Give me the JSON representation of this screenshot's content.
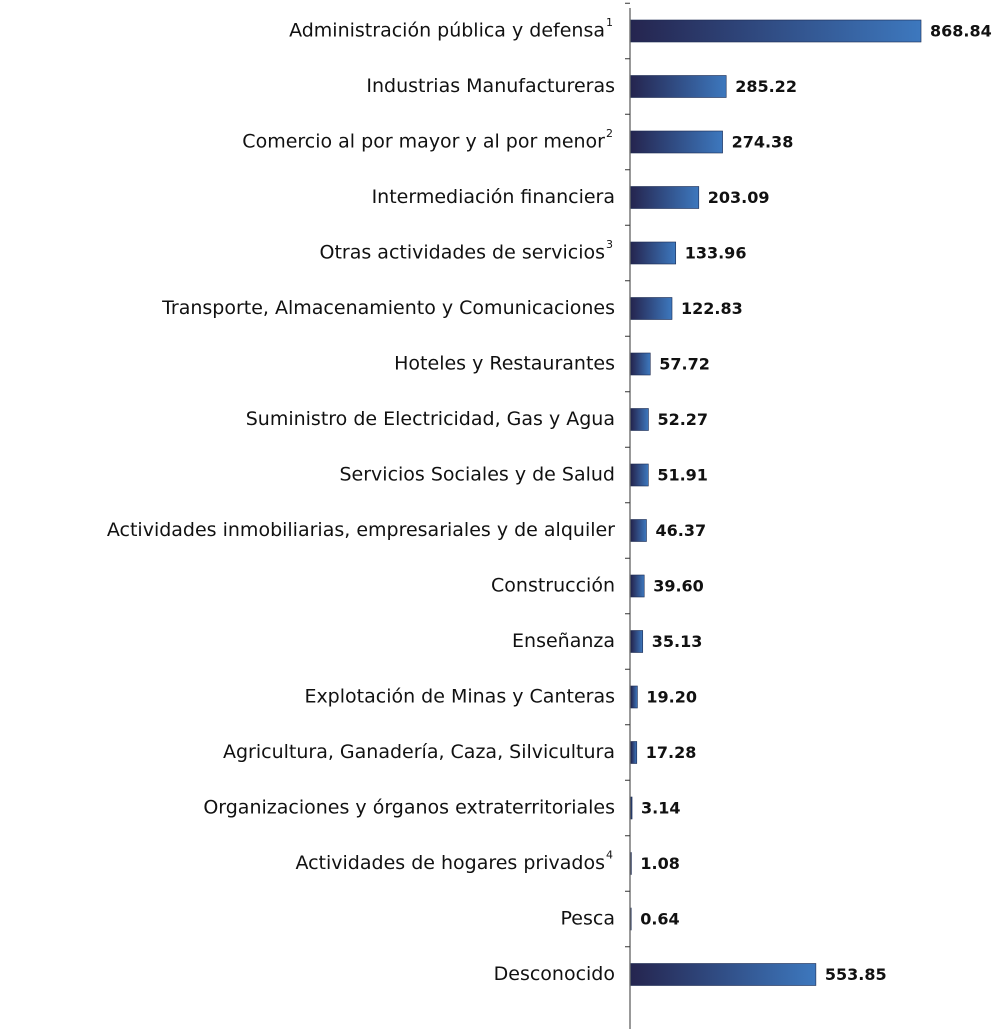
{
  "chart_data": {
    "type": "hbar",
    "categories": [
      "Administración pública y defensa",
      "Industrias Manufactureras",
      "Comercio al por mayor y al por menor",
      "Intermediación financiera",
      "Otras actividades de servicios",
      "Transporte, Almacenamiento y Comunicaciones",
      "Hoteles y Restaurantes",
      "Suministro de Electricidad, Gas y Agua",
      "Servicios Sociales y de Salud",
      "Actividades inmobiliarias, empresariales y de alquiler",
      "Construcción",
      "Enseñanza",
      "Explotación de Minas y Canteras",
      "Agricultura, Ganadería, Caza, Silvicultura",
      "Organizaciones y órganos extraterritoriales",
      "Actividades de hogares privados",
      "Pesca",
      "Desconocido"
    ],
    "footnote_marks": [
      "1",
      null,
      "2",
      null,
      "3",
      null,
      null,
      null,
      null,
      null,
      null,
      null,
      null,
      null,
      null,
      "4",
      null,
      null
    ],
    "values": [
      868.84,
      285.22,
      274.38,
      203.09,
      133.96,
      122.83,
      57.72,
      52.27,
      51.91,
      46.37,
      39.6,
      35.13,
      19.2,
      17.28,
      3.14,
      1.08,
      0.64,
      553.85
    ],
    "value_labels": [
      "868.84",
      "285.22",
      "274.38",
      "203.09",
      "133.96",
      "122.83",
      "57.72",
      "52.27",
      "51.91",
      "46.37",
      "39.60",
      "35.13",
      "19.20",
      "17.28",
      "3.14",
      "1.08",
      "0.64",
      "553.85"
    ],
    "color": [
      "#25254f",
      "#3d78be"
    ]
  }
}
